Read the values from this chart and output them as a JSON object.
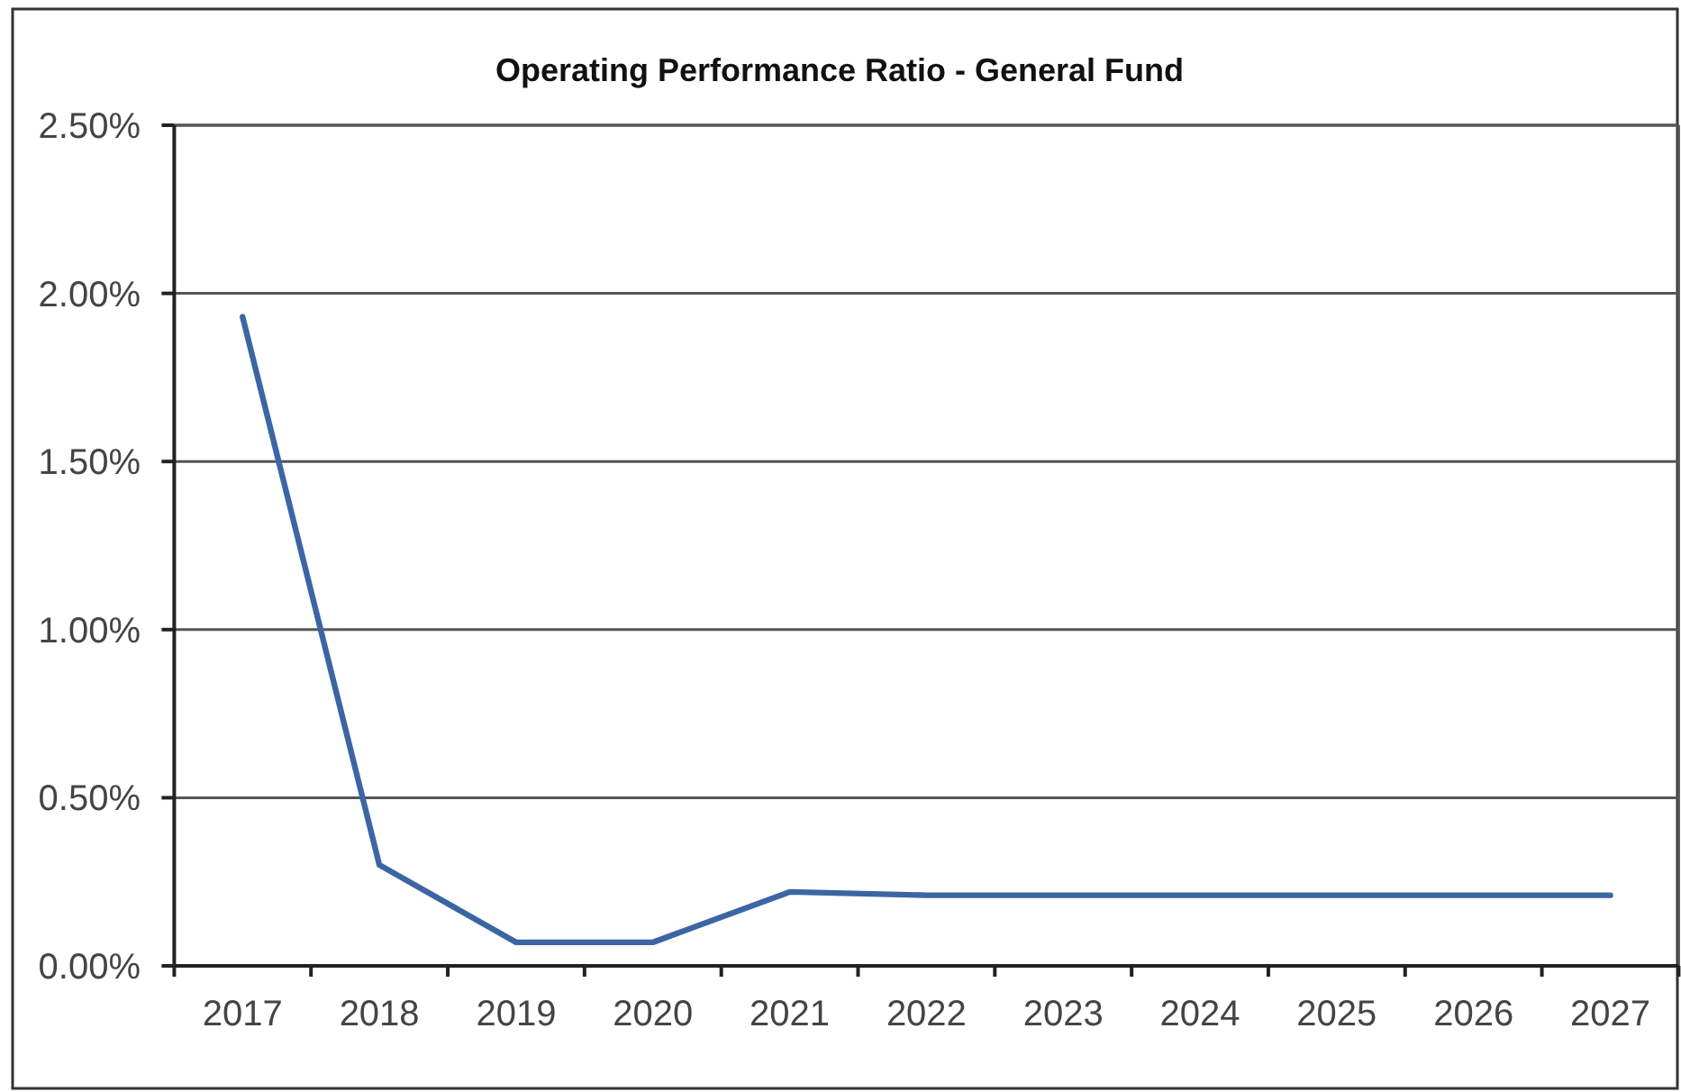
{
  "chart_data": {
    "type": "line",
    "title": "Operating Performance Ratio - General Fund",
    "categories": [
      "2017",
      "2018",
      "2019",
      "2020",
      "2021",
      "2022",
      "2023",
      "2024",
      "2025",
      "2026",
      "2027"
    ],
    "values": [
      1.93,
      0.3,
      0.07,
      0.07,
      0.22,
      0.21,
      0.21,
      0.21,
      0.21,
      0.21,
      0.21
    ],
    "color": "#3c65a3",
    "ylim": [
      0,
      2.5
    ],
    "yticks": [
      {
        "value": 0,
        "label": "0.00%"
      },
      {
        "value": 0.5,
        "label": "0.50%"
      },
      {
        "value": 1,
        "label": "1.00%"
      },
      {
        "value": 1.5,
        "label": "1.50%"
      },
      {
        "value": 2,
        "label": "2.00%"
      },
      {
        "value": 2.5,
        "label": "2.50%"
      }
    ],
    "grid": "y"
  }
}
